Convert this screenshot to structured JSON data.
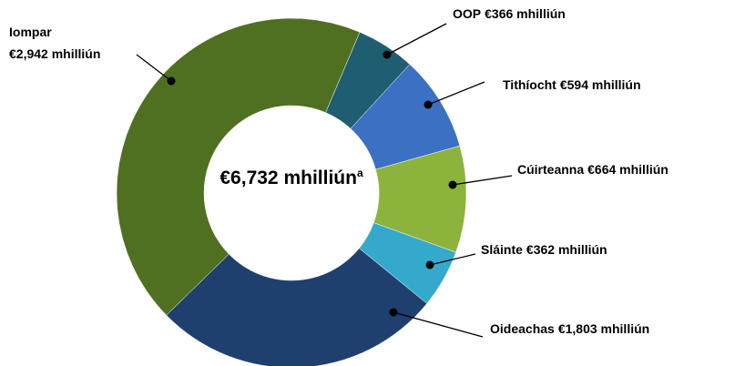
{
  "chart_data": {
    "type": "donut",
    "center_label": "€6,732 mhilliún",
    "center_note": "a",
    "categories": [
      "OOP",
      "Tithíocht",
      "Cúirteanna",
      "Sláinte",
      "Oideachas",
      "Iompar"
    ],
    "values": [
      366,
      594,
      664,
      362,
      1803,
      2942
    ],
    "value_labels": [
      "€366 mhilliún",
      "€594 mhilliún",
      "€664 mhilliún",
      "€362 mhilliún",
      "€1,803 mhilliún",
      "€2,942 mhilliún"
    ],
    "colors": [
      "#1f5d70",
      "#3b70c2",
      "#8cb43c",
      "#35a9cc",
      "#1f406f",
      "#4f7021"
    ]
  }
}
